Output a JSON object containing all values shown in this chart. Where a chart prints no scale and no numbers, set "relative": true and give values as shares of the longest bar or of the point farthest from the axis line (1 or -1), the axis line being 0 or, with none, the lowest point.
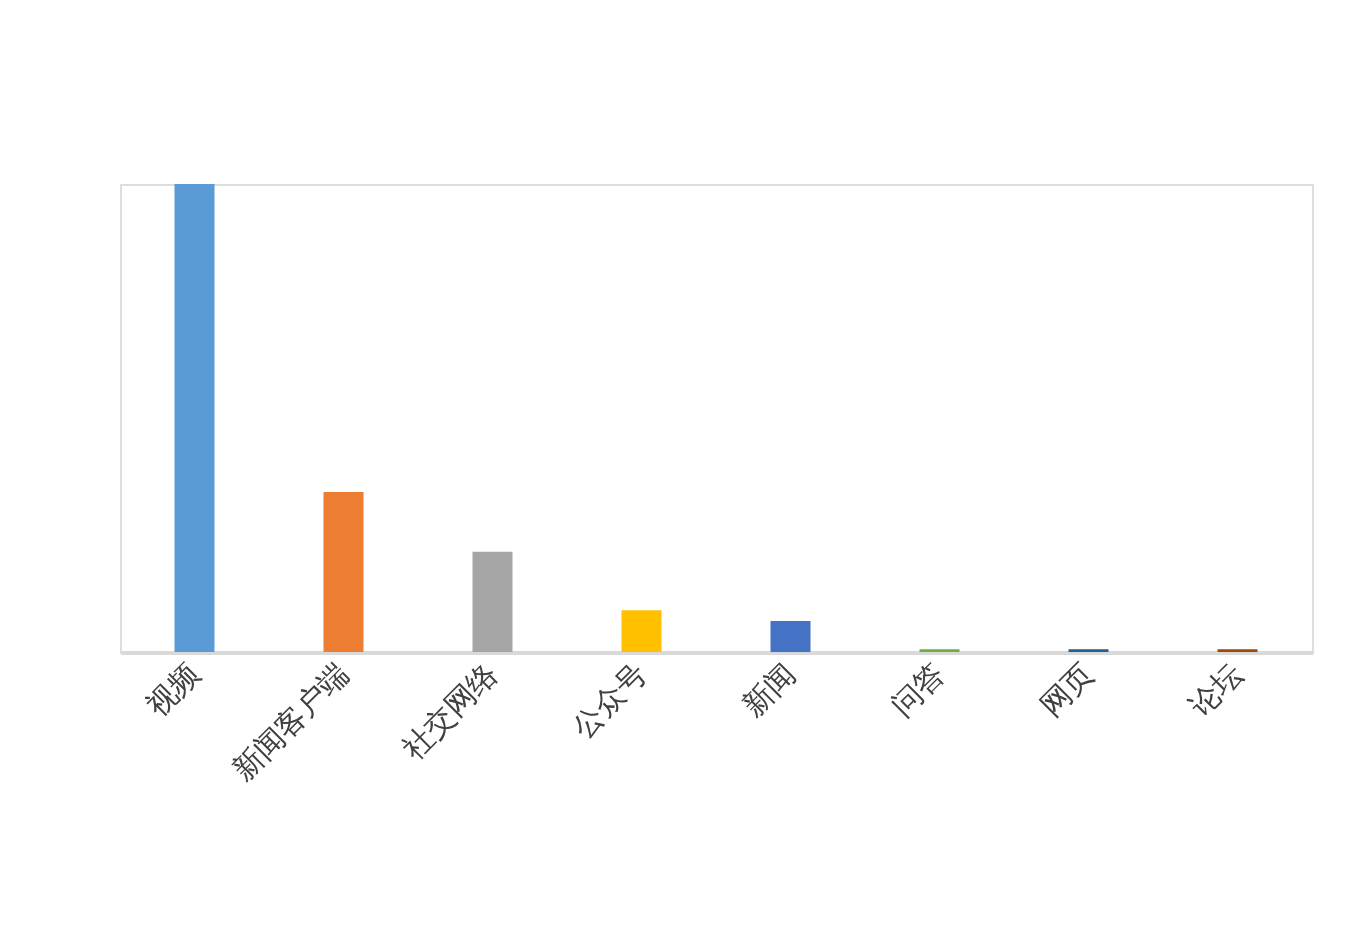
{
  "chart_data": {
    "type": "bar",
    "relative": true,
    "categories": [
      "视频",
      "新闻客户端",
      "社交网络",
      "公众号",
      "新闻",
      "问答",
      "网页",
      "论坛"
    ],
    "values": [
      1,
      0.342,
      0.214,
      0.089,
      0.066,
      0.006,
      0.006,
      0.006
    ],
    "colors": [
      "#5b9bd5",
      "#ed7d31",
      "#a5a5a5",
      "#ffc000",
      "#4472c4",
      "#70ad47",
      "#255e91",
      "#9e480e"
    ],
    "grid": false,
    "legend": false
  }
}
